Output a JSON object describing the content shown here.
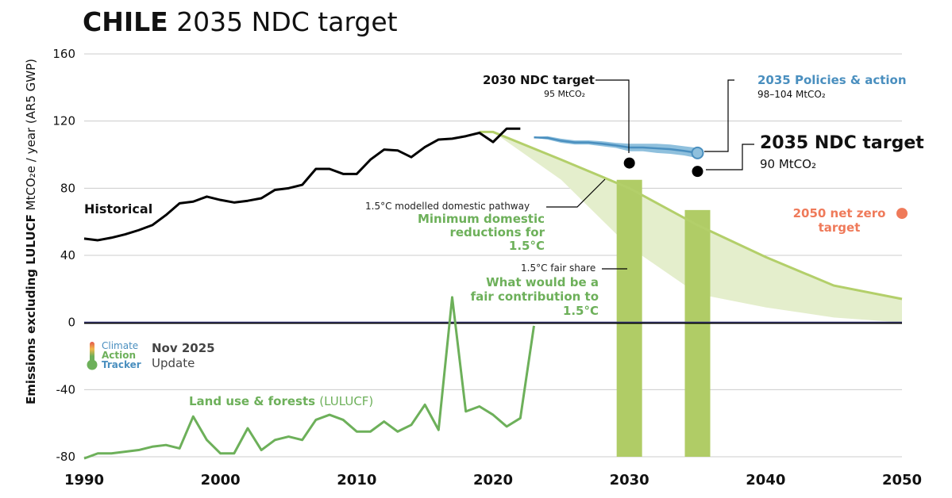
{
  "title": {
    "country": "CHILE",
    "rest": "2035 NDC target"
  },
  "y_axis_label": {
    "bold": "Emissions excluding LULUCF",
    "rest": "MtCO₂e / year (AR5 GWP)"
  },
  "labels": {
    "historical": "Historical",
    "ndc2030": "2030 NDC target",
    "ndc2030_value": "95 MtCO₂",
    "policies2035": "2035 Policies & action",
    "policies2035_value": "98–104 MtCO₂",
    "ndc2035": "2035 NDC target",
    "ndc2035_value": "90 MtCO₂",
    "pathway15": "1.5°C modelled domestic pathway",
    "min_domestic": "Minimum domestic reductions for 1.5°C",
    "fair_share": "1.5°C fair share",
    "fair_contribution": "What would be a fair contribution to 1.5°C",
    "netzero": "2050 net zero target",
    "landuse": "Land use & forests",
    "landuse_suffix": "(LULUCF)"
  },
  "logo": {
    "line1": "Climate",
    "line2": "Action",
    "line3": "Tracker"
  },
  "update": {
    "date": "Nov 2025",
    "label": "Update"
  },
  "colors": {
    "historical": "#000000",
    "policies": "#4a8fbf",
    "policies_band": "#8fc0dd",
    "pathway": "#b3cf6a",
    "pathway_band": "#e4eecc",
    "fair_bar": "#b0cc66",
    "lulucf": "#6db05a",
    "netzero": "#ef7a5a",
    "grid": "#cccccc"
  },
  "chart_data": {
    "type": "line",
    "title": "CHILE 2035 NDC target",
    "ylabel": "Emissions excluding LULUCF MtCO2e / year (AR5 GWP)",
    "xlim": [
      1990,
      2050
    ],
    "ylim": [
      -80,
      160
    ],
    "x_ticks": [
      1990,
      2000,
      2010,
      2020,
      2030,
      2040,
      2050
    ],
    "y_ticks": [
      -80,
      -40,
      0,
      40,
      80,
      120,
      160
    ],
    "series": [
      {
        "name": "Historical",
        "x": [
          1990,
          1991,
          1992,
          1993,
          1994,
          1995,
          1996,
          1997,
          1998,
          1999,
          2000,
          2001,
          2002,
          2003,
          2004,
          2005,
          2006,
          2007,
          2008,
          2009,
          2010,
          2011,
          2012,
          2013,
          2014,
          2015,
          2016,
          2017,
          2018,
          2019,
          2020,
          2021,
          2022
        ],
        "values": [
          50,
          49,
          50.5,
          52.5,
          55,
          58,
          64,
          71,
          72,
          75,
          73,
          71.5,
          72.5,
          74,
          79,
          80,
          82,
          91.5,
          91.5,
          88.5,
          88.5,
          97,
          103,
          102.5,
          98.5,
          104.5,
          109,
          109.5,
          111,
          113,
          107.5,
          115.5,
          115.5
        ]
      },
      {
        "name": "2035 Policies & action",
        "x": [
          2023,
          2024,
          2025,
          2026,
          2027,
          2028,
          2029,
          2030,
          2031,
          2032,
          2033,
          2034,
          2035
        ],
        "low": [
          110,
          109,
          107,
          106,
          106,
          105,
          104,
          102,
          102,
          101,
          100.5,
          99.5,
          98
        ],
        "high": [
          110.5,
          111,
          109.5,
          108.5,
          108.5,
          108,
          107,
          106.5,
          106.5,
          106.5,
          106,
          105,
          104
        ]
      },
      {
        "name": "1.5°C modelled domestic pathway",
        "x": [
          2019,
          2020,
          2025,
          2030,
          2035,
          2040,
          2045,
          2050
        ],
        "values": [
          113.5,
          113.5,
          97,
          80,
          58,
          39,
          22,
          14
        ]
      },
      {
        "name": "Minimum domestic reductions for 1.5°C (band lower bound)",
        "x": [
          2020,
          2025,
          2030,
          2035,
          2040,
          2045,
          2050
        ],
        "values": [
          113.5,
          85,
          45,
          17,
          9,
          3,
          0
        ]
      },
      {
        "name": "Land use & forests (LULUCF)",
        "x": [
          1990,
          1991,
          1992,
          1993,
          1994,
          1995,
          1996,
          1997,
          1998,
          1999,
          2000,
          2001,
          2002,
          2003,
          2004,
          2005,
          2006,
          2007,
          2008,
          2009,
          2010,
          2011,
          2012,
          2013,
          2014,
          2015,
          2016,
          2017,
          2018,
          2019,
          2020,
          2021,
          2022,
          2023
        ],
        "values": [
          -81,
          -78,
          -78,
          -77,
          -76,
          -74,
          -73,
          -75,
          -56,
          -70,
          -78,
          -78,
          -63,
          -76,
          -70,
          -68,
          -70,
          -58,
          -55,
          -58,
          -65,
          -65,
          -59,
          -65,
          -61,
          -49,
          -64,
          15,
          -53,
          -50,
          -55,
          -62,
          -57,
          -2
        ]
      }
    ],
    "points": [
      {
        "name": "2030 NDC target",
        "x": 2030,
        "y": 95
      },
      {
        "name": "2035 NDC target",
        "x": 2035,
        "y": 90
      },
      {
        "name": "2035 Policies & action",
        "x": 2035,
        "y": 101
      },
      {
        "name": "2050 net zero target",
        "x": 2050,
        "y": 65
      }
    ],
    "bars": [
      {
        "name": "1.5°C fair share 2030",
        "x": 2030,
        "value": 85
      },
      {
        "name": "1.5°C fair share 2035",
        "x": 2035,
        "value": 67
      }
    ]
  }
}
